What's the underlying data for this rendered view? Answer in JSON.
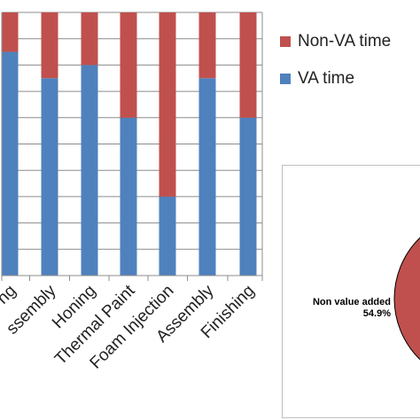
{
  "chart_data": [
    {
      "type": "bar",
      "stacked": true,
      "categories": [
        "Cleaning",
        "Sub-Assembly",
        "Honing",
        "Thermal Paint",
        "Foam Injection",
        "Assembly",
        "Finishing"
      ],
      "visible_category_labels": [
        "ng",
        "ssembly",
        "Honing",
        "Thermal Paint",
        "Foam Injection",
        "Assembly",
        "Finishing"
      ],
      "series": [
        {
          "name": "VA time",
          "color": "#4f81bd",
          "values": [
            85,
            75,
            80,
            60,
            30,
            75,
            60
          ]
        },
        {
          "name": "Non-VA time",
          "color": "#c0504d",
          "values": [
            15,
            25,
            20,
            40,
            70,
            25,
            40
          ]
        }
      ],
      "ylim": [
        0,
        100
      ],
      "grid": true,
      "legend_position": "right"
    },
    {
      "type": "pie",
      "slices": [
        {
          "label": "Non value added",
          "value": 54.9,
          "label_text": "54.9%",
          "color": "#c0504d"
        }
      ]
    }
  ],
  "legend": {
    "items": [
      {
        "label": "Non-VA time",
        "color": "#c0504d"
      },
      {
        "label": "VA time",
        "color": "#4f81bd"
      }
    ]
  },
  "pie": {
    "label_line1": "Non value added",
    "label_line2": "54.9%"
  }
}
